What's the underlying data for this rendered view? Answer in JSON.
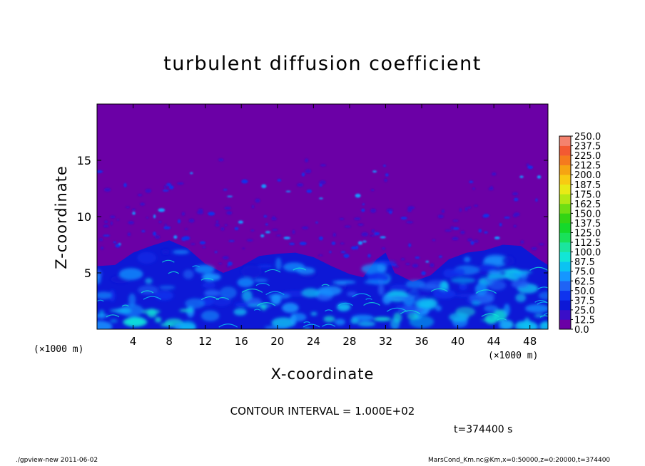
{
  "chart_data": {
    "type": "heatmap",
    "title": "turbulent diffusion coefficient",
    "xlabel": "X-coordinate",
    "ylabel": "Z-coordinate",
    "x_unit_left": "(×1000 m)",
    "x_unit_right": "(×1000 m)",
    "xlim": [
      0,
      50
    ],
    "ylim": [
      0,
      20
    ],
    "xticks": [
      "4",
      "8",
      "12",
      "16",
      "20",
      "24",
      "28",
      "32",
      "36",
      "40",
      "44",
      "48"
    ],
    "yticks": [
      "5",
      "10",
      "15"
    ],
    "colorbar": {
      "labels": [
        "0.0",
        "12.5",
        "25.0",
        "37.5",
        "50.0",
        "62.5",
        "75.0",
        "87.5",
        "100.0",
        "112.5",
        "125.0",
        "137.5",
        "150.0",
        "162.5",
        "175.0",
        "187.5",
        "200.0",
        "212.5",
        "225.0",
        "237.5",
        "250.0"
      ],
      "colors": [
        "#6b00a6",
        "#3a0ec8",
        "#0d18d6",
        "#0f33ee",
        "#1f63f5",
        "#1596ff",
        "#0bc3f2",
        "#12e6d6",
        "#1be59e",
        "#19e15a",
        "#15d92b",
        "#33d414",
        "#6fde13",
        "#b3e814",
        "#e8ea16",
        "#f8cb12",
        "#f6a412",
        "#f57a1e",
        "#f35932",
        "#f4826e"
      ]
    },
    "turbulent_layer_top_km": [
      [
        0,
        5.6
      ],
      [
        2,
        5.7
      ],
      [
        4,
        6.8
      ],
      [
        6,
        7.4
      ],
      [
        8,
        7.9
      ],
      [
        10,
        7.2
      ],
      [
        12,
        5.8
      ],
      [
        14,
        5.0
      ],
      [
        16,
        5.6
      ],
      [
        18,
        6.5
      ],
      [
        20,
        6.7
      ],
      [
        22,
        6.8
      ],
      [
        24,
        6.4
      ],
      [
        26,
        5.6
      ],
      [
        28,
        4.9
      ],
      [
        29.5,
        4.6
      ],
      [
        31,
        6.2
      ],
      [
        32,
        6.8
      ],
      [
        33,
        5.0
      ],
      [
        35,
        4.2
      ],
      [
        37,
        4.8
      ],
      [
        39,
        6.2
      ],
      [
        41,
        6.8
      ],
      [
        43,
        7.0
      ],
      [
        45,
        7.5
      ],
      [
        47,
        7.4
      ],
      [
        49,
        6.2
      ],
      [
        50,
        5.7
      ]
    ],
    "contour_interval": "CONTOUR INTERVAL = 1.000E+02",
    "time": "t=374400 s"
  },
  "footer": {
    "left": "./gpview-new  2011-06-02",
    "right": "MarsCond_Km.nc@Km,x=0:50000,z=0:20000,t=374400"
  }
}
